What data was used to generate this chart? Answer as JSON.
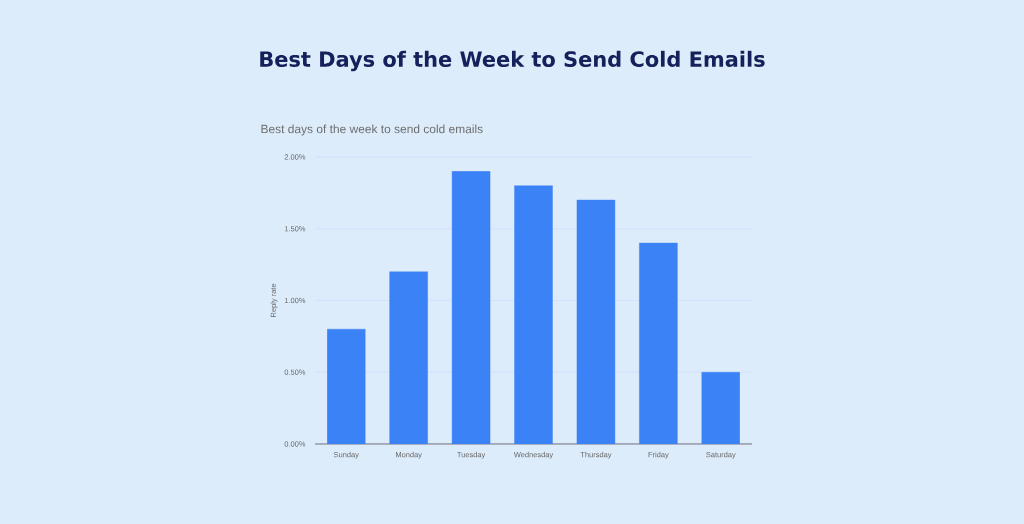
{
  "chart_data": {
    "type": "bar",
    "title": "Best Days of the Week to Send Cold Emails",
    "subtitle": "Best days of the week to send cold emails",
    "ylabel": "Reply rate",
    "categories": [
      "Sunday",
      "Monday",
      "Tuesday",
      "Wednesday",
      "Thursday",
      "Friday",
      "Saturday"
    ],
    "values": [
      0.8,
      1.2,
      1.9,
      1.8,
      1.7,
      1.4,
      0.5
    ],
    "color": "#3b82f6",
    "ylim": [
      0,
      2
    ],
    "yticks": [
      {
        "value": 0,
        "label": "0.00%"
      },
      {
        "value": 0.5,
        "label": "0.50%"
      },
      {
        "value": 1,
        "label": "1.00%"
      },
      {
        "value": 1.5,
        "label": "1.50%"
      },
      {
        "value": 2,
        "label": "2.00%"
      }
    ],
    "grid": "y"
  }
}
